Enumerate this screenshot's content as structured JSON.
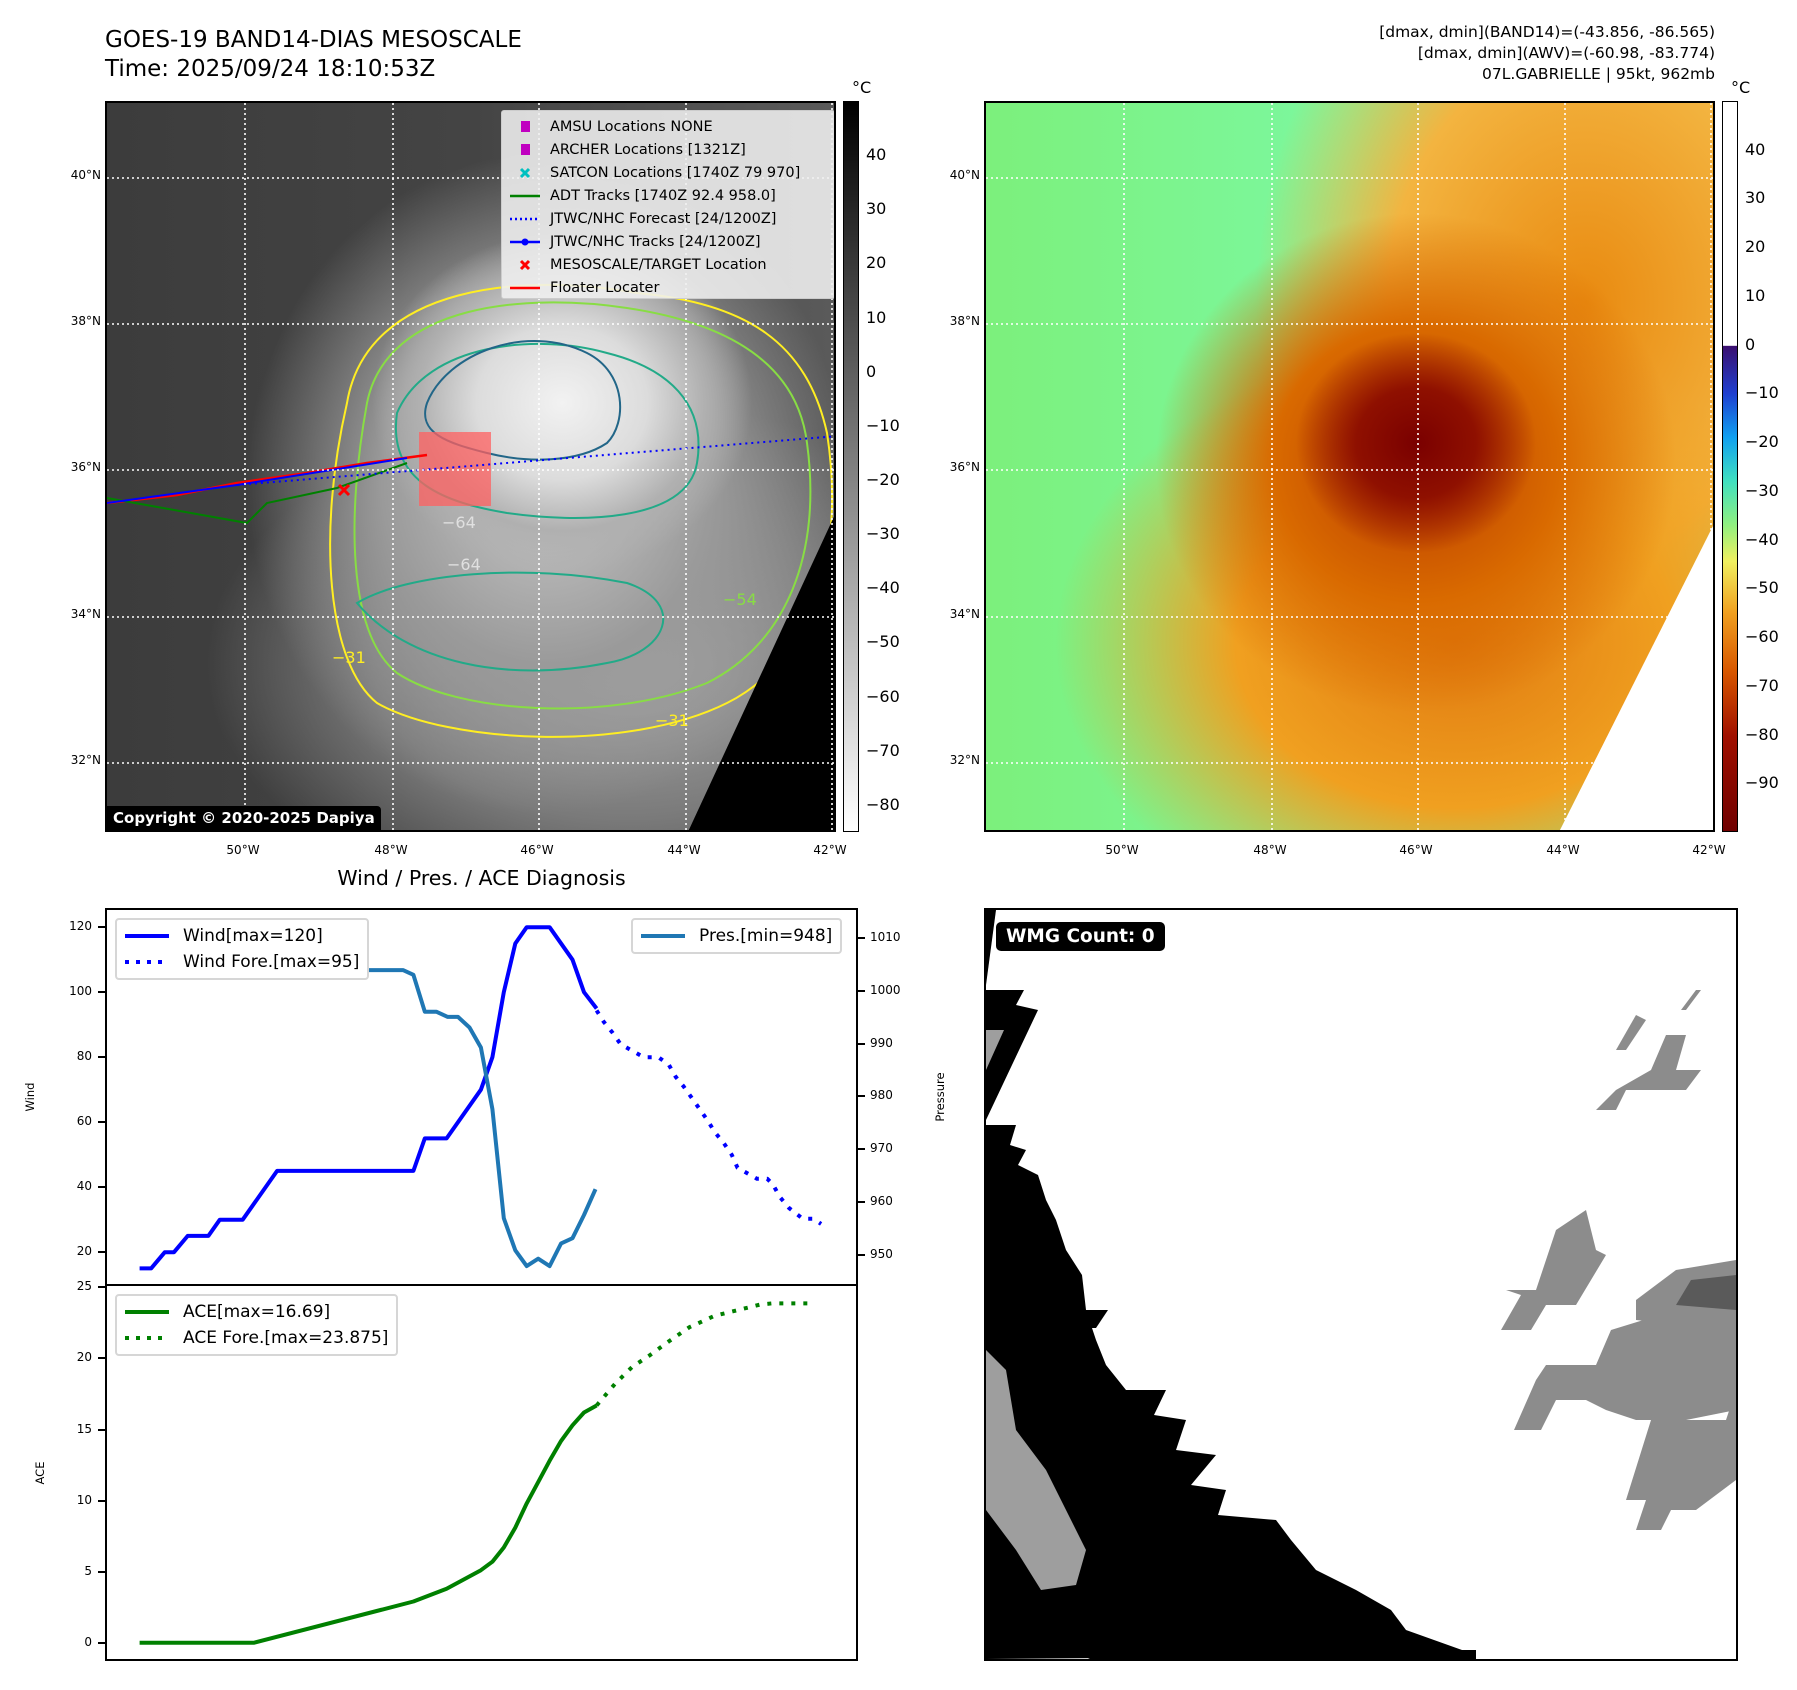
{
  "header": {
    "title": "GOES-19 BAND14-DIAS MESOSCALE",
    "time": "Time: 2025/09/24 18:10:53Z",
    "right_lines": [
      "[dmax, dmin](BAND14)=(-43.856, -86.565)",
      "[dmax, dmin](AWV)=(-60.98, -83.774)",
      "07L.GABRIELLE | 95kt, 962mb"
    ]
  },
  "maps": {
    "unit": "°C",
    "lat_labels": [
      "40°N",
      "38°N",
      "36°N",
      "34°N",
      "32°N"
    ],
    "lon_labels": [
      "50°W",
      "48°W",
      "46°W",
      "44°W",
      "42°W"
    ],
    "colorbar1_ticks": [
      "40",
      "30",
      "20",
      "10",
      "0",
      "−10",
      "−20",
      "−30",
      "−40",
      "−50",
      "−60",
      "−70",
      "−80"
    ],
    "colorbar1_range": [
      -85,
      50
    ],
    "colorbar2_ticks": [
      "40",
      "30",
      "20",
      "10",
      "0",
      "−10",
      "−20",
      "−30",
      "−40",
      "−50",
      "−60",
      "−70",
      "−80",
      "−90"
    ],
    "colorbar2_range": [
      -100,
      50
    ],
    "contour_labels": [
      "−64",
      "−64",
      "−31",
      "−31",
      "−54"
    ],
    "copyright": "Copyright © 2020-2025 Dapiya",
    "legend": [
      {
        "label": "AMSU Locations NONE",
        "color": "#c000c0"
      },
      {
        "label": "ARCHER Locations [1321Z]",
        "color": "#c000c0"
      },
      {
        "label": "SATCON Locations [1740Z 79 970]",
        "color": "#00c0c0"
      },
      {
        "label": "ADT Tracks [1740Z 92.4 958.0]",
        "color": "#008000"
      },
      {
        "label": "JTWC/NHC Forecast [24/1200Z]",
        "color": "#0000ff"
      },
      {
        "label": "JTWC/NHC Tracks [24/1200Z]",
        "color": "#0000ff"
      },
      {
        "label": "MESOSCALE/TARGET Location",
        "color": "#ff0000"
      },
      {
        "label": "Floater Locater",
        "color": "#ff0000"
      }
    ]
  },
  "wmg": {
    "label": "WMG Count: 0"
  },
  "chart_data": [
    {
      "type": "line",
      "title": "Wind / Pres. / ACE Diagnosis",
      "xlabel": "",
      "ylabel": "Wind",
      "ylabel_right": "Pressure",
      "xlim": [
        -2.85,
        62.55
      ],
      "ylim": [
        10.2,
        125.3
      ],
      "ylim_right": [
        944.4,
        1015.4
      ],
      "yticks": [
        20,
        40,
        60,
        80,
        100,
        120
      ],
      "yticks_right": [
        950,
        960,
        970,
        980,
        990,
        1000,
        1010
      ],
      "series": [
        {
          "name": "Wind[max=120]",
          "axis": "left",
          "color": "#0000ff",
          "style": "solid",
          "x": [
            0,
            1,
            2.2,
            3,
            4.2,
            6,
            7,
            9,
            12,
            23.9,
            24.9,
            26.8,
            29.8,
            30.8,
            31.8,
            32.8,
            33.8,
            35.8,
            37.8,
            38.8,
            39.9
          ],
          "y": [
            15,
            15,
            20,
            20,
            25,
            25,
            30,
            30,
            45,
            45,
            55,
            55,
            70,
            80,
            100,
            115,
            120,
            120,
            110,
            100,
            95
          ]
        },
        {
          "name": "Wind Fore.[max=95]",
          "axis": "left",
          "color": "#0000ff",
          "style": "dotted",
          "x": [
            39.9,
            40.5,
            41.3,
            42,
            43,
            44,
            45.3,
            46.2,
            46.8,
            47.5,
            48.2,
            48.9,
            49.6,
            50.2,
            51,
            51.7,
            52.2,
            53.9,
            54.8,
            55.3,
            55.9,
            56.7,
            57.9,
            58.8,
            59.5
          ],
          "y": [
            94.4,
            91,
            87.5,
            84,
            82,
            80,
            80,
            77.7,
            74,
            71,
            67.5,
            64,
            60.5,
            57,
            53.6,
            50,
            46,
            42.6,
            42.6,
            40.8,
            37,
            33.6,
            30.3,
            30.3,
            28.7
          ]
        },
        {
          "name": "Pres.[min=948]",
          "axis": "right",
          "color": "#1f77b4",
          "style": "solid",
          "x": [
            0,
            1,
            2.2,
            3.2,
            4.2,
            5.2,
            8.2,
            10,
            12,
            13,
            14,
            23,
            23.9,
            24.9,
            25.9,
            26.9,
            27.8,
            28.8,
            29.8,
            30.8,
            31.8,
            32.8,
            33.8,
            34.8,
            35.8,
            36.8,
            37.8,
            38.8,
            39.8
          ],
          "y": [
            1012.2,
            1012.2,
            1011.3,
            1011.3,
            1010.3,
            1010.2,
            1007.2,
            1007.2,
            1005.2,
            1005.2,
            1004,
            1004,
            1003.1,
            996.1,
            996.1,
            995.1,
            995.1,
            993.1,
            989.3,
            977.6,
            956.9,
            950.8,
            947.8,
            949.2,
            947.8,
            952.1,
            953.1,
            957.5,
            962.4
          ]
        }
      ]
    },
    {
      "type": "line",
      "xlabel": "",
      "ylabel": "ACE",
      "xlim": [
        -2.85,
        62.55
      ],
      "ylim": [
        -1.15,
        25.1
      ],
      "yticks": [
        0,
        5,
        10,
        15,
        20,
        25
      ],
      "series": [
        {
          "name": "ACE[max=16.69]",
          "color": "#008000",
          "style": "solid",
          "x": [
            0,
            10,
            23.9,
            26.8,
            29.8,
            30.8,
            31.8,
            32.8,
            33.8,
            34.8,
            35.8,
            36.8,
            37.8,
            38.8,
            39.9
          ],
          "y": [
            0,
            0,
            2.9,
            3.8,
            5.1,
            5.7,
            6.7,
            8.1,
            9.8,
            11.3,
            12.8,
            14.2,
            15.3,
            16.2,
            16.69
          ]
        },
        {
          "name": "ACE Fore.[max=23.875]",
          "color": "#008000",
          "style": "dotted",
          "x": [
            39.9,
            41.5,
            43,
            44.5,
            46.2,
            48,
            50.2,
            52.2,
            54.2,
            55.2,
            58.9
          ],
          "y": [
            16.69,
            18.2,
            19.4,
            20.2,
            21.2,
            22.2,
            23,
            23.4,
            23.8,
            23.875,
            23.875
          ]
        }
      ]
    }
  ]
}
